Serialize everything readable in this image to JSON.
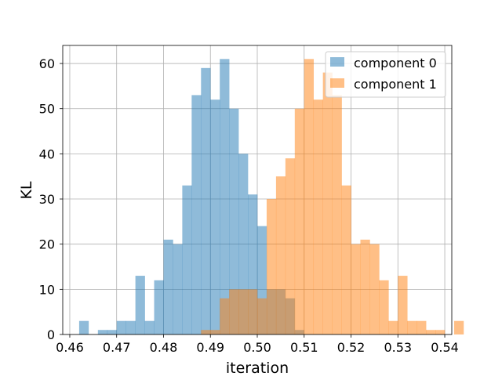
{
  "chart_data": {
    "type": "histogram",
    "title": "",
    "xlabel": "iteration",
    "ylabel": "KL",
    "xlim": [
      0.4585,
      0.5415
    ],
    "ylim": [
      0,
      64
    ],
    "xticks": [
      "0.46",
      "0.47",
      "0.48",
      "0.49",
      "0.50",
      "0.51",
      "0.52",
      "0.53",
      "0.54"
    ],
    "yticks": [
      "0",
      "10",
      "20",
      "30",
      "40",
      "50",
      "60"
    ],
    "grid": true,
    "legend_position": "top-right",
    "bin_width": 0.002,
    "series": [
      {
        "name": "component 0",
        "color": "#1f77b4",
        "alpha": 0.5,
        "bin_start": 0.462,
        "counts": [
          3,
          0,
          1,
          1,
          3,
          3,
          13,
          3,
          12,
          21,
          20,
          33,
          53,
          59,
          52,
          61,
          50,
          40,
          31,
          24,
          10,
          10,
          8,
          1,
          0
        ]
      },
      {
        "name": "component 1",
        "color": "#ff7f0e",
        "alpha": 0.5,
        "bin_start": 0.488,
        "counts": [
          1,
          1,
          8,
          10,
          10,
          10,
          8,
          30,
          35,
          39,
          50,
          61,
          52,
          58,
          53,
          33,
          20,
          21,
          20,
          12,
          3,
          13,
          3,
          3,
          1,
          1,
          0,
          3
        ]
      }
    ]
  }
}
